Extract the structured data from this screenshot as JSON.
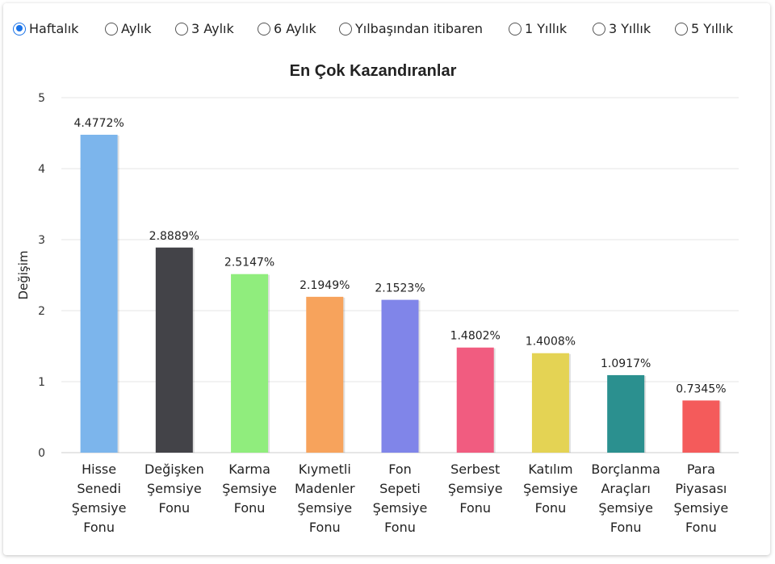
{
  "periods": [
    {
      "label": "Haftalık",
      "selected": true
    },
    {
      "label": "Aylık",
      "selected": false
    },
    {
      "label": "3 Aylık",
      "selected": false
    },
    {
      "label": "6 Aylık",
      "selected": false
    },
    {
      "label": "Yılbaşından itibaren",
      "selected": false
    },
    {
      "label": "1 Yıllık",
      "selected": false
    },
    {
      "label": "3 Yıllık",
      "selected": false
    },
    {
      "label": "5 Yıllık",
      "selected": false
    }
  ],
  "chart_data": {
    "type": "bar",
    "title": "En Çok Kazandıranlar",
    "ylabel": "Değişim",
    "xlabel": "",
    "ylim": [
      0,
      5
    ],
    "yticks": [
      0,
      1,
      2,
      3,
      4,
      5
    ],
    "grid": true,
    "categories": [
      [
        "Hisse",
        "Senedi",
        "Şemsiye",
        "Fonu"
      ],
      [
        "Değişken",
        "Şemsiye",
        "Fonu"
      ],
      [
        "Karma",
        "Şemsiye",
        "Fonu"
      ],
      [
        "Kıymetli",
        "Madenler",
        "Şemsiye",
        "Fonu"
      ],
      [
        "Fon",
        "Sepeti",
        "Şemsiye",
        "Fonu"
      ],
      [
        "Serbest",
        "Şemsiye",
        "Fonu"
      ],
      [
        "Katılım",
        "Şemsiye",
        "Fonu"
      ],
      [
        "Borçlanma",
        "Araçları",
        "Şemsiye",
        "Fonu"
      ],
      [
        "Para",
        "Piyasası",
        "Şemsiye",
        "Fonu"
      ]
    ],
    "values": [
      4.4772,
      2.8889,
      2.5147,
      2.1949,
      2.1523,
      1.4802,
      1.4008,
      1.0917,
      0.7345
    ],
    "data_labels": [
      "4.4772%",
      "2.8889%",
      "2.5147%",
      "2.1949%",
      "2.1523%",
      "1.4802%",
      "1.4008%",
      "1.0917%",
      "0.7345%"
    ],
    "colors": [
      "#7cb5ec",
      "#434348",
      "#90ed7d",
      "#f7a35c",
      "#8085e9",
      "#f15c80",
      "#e4d354",
      "#2b908f",
      "#f45b5b"
    ]
  }
}
